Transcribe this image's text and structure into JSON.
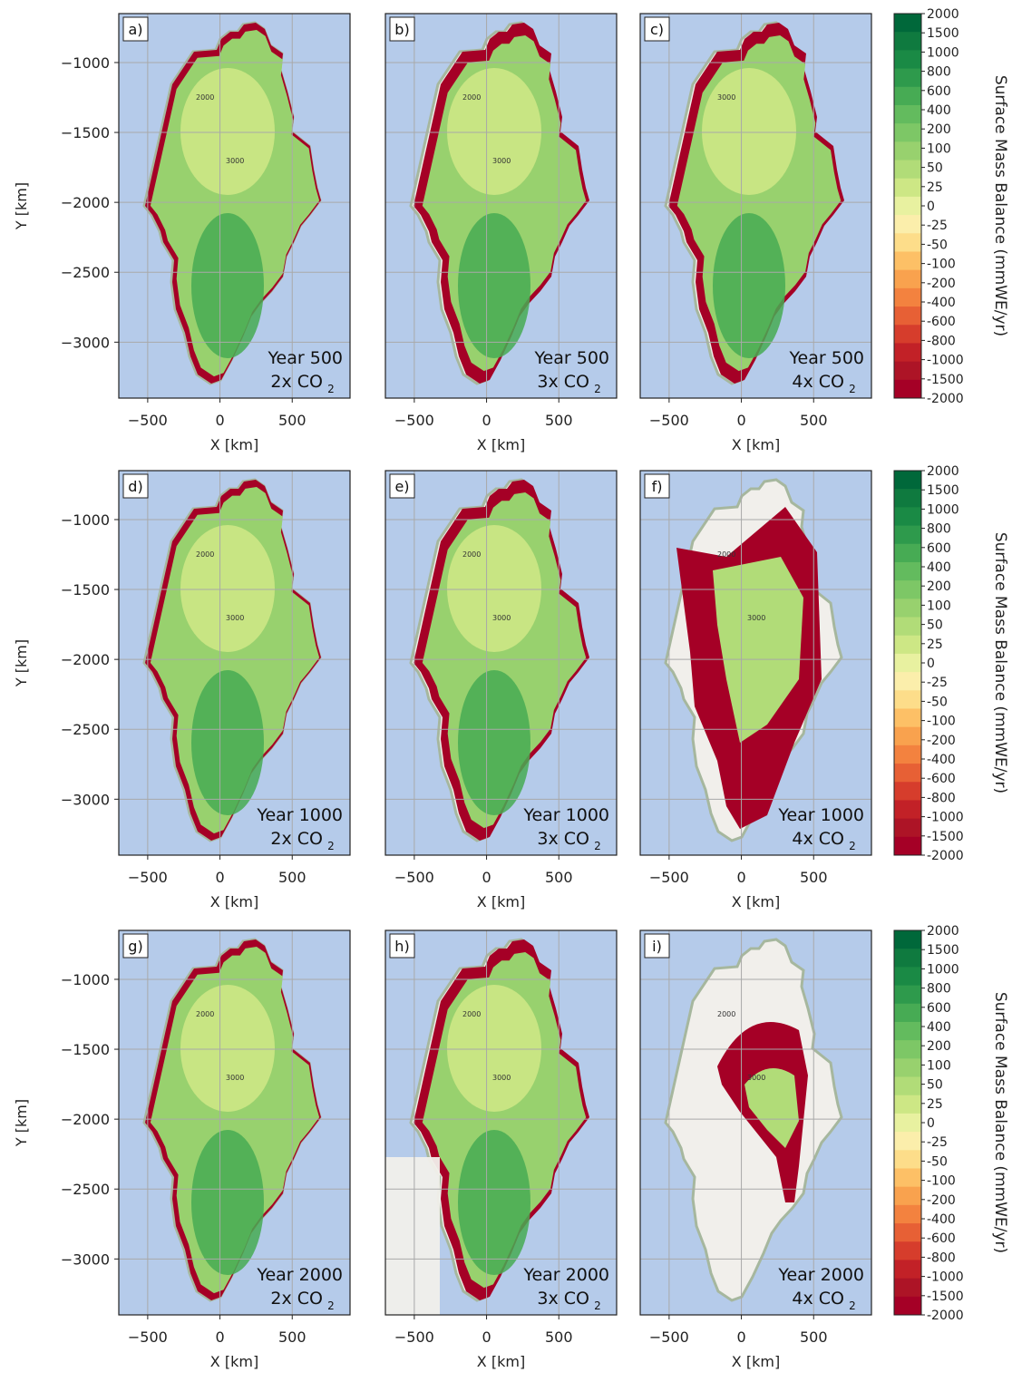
{
  "figure": {
    "x_label": "X [km]",
    "y_label": "Y [km]",
    "colorbar_label": "Surface Mass Balance (mmWE/yr)"
  },
  "chart_data": {
    "type": "heatmap",
    "x_ticks": [
      -500,
      0,
      500
    ],
    "y_ticks": [
      -1000,
      -1500,
      -2000,
      -2500,
      -3000
    ],
    "xlim": [
      -700,
      900
    ],
    "ylim": [
      -3400,
      -650
    ],
    "grid": true,
    "colorbar": {
      "levels": [
        "2000",
        "1500",
        "1000",
        "800",
        "600",
        "400",
        "200",
        "100",
        "50",
        "25",
        "0",
        "-25",
        "-50",
        "-100",
        "-200",
        "-400",
        "-600",
        "-800",
        "-1000",
        "-1500",
        "-2000"
      ],
      "colors": [
        "#00683a",
        "#0f7a3f",
        "#1a8a45",
        "#2e9a4c",
        "#47ab54",
        "#63bb5e",
        "#7dc766",
        "#98d16e",
        "#b1dc78",
        "#cde785",
        "#e8f1a0",
        "#fbeeab",
        "#fddd8a",
        "#fdc066",
        "#f9a24e",
        "#f3823f",
        "#e76035",
        "#d63d2c",
        "#c22127",
        "#ad1426",
        "#a50026"
      ]
    },
    "panels": [
      {
        "id": "a)",
        "year": "Year 500",
        "co2": "2x CO",
        "ice_extent": "full",
        "contours": [
          "2000",
          "3000"
        ]
      },
      {
        "id": "b)",
        "year": "Year 500",
        "co2": "3x CO",
        "ice_extent": "full",
        "contours": [
          "2000",
          "3000"
        ]
      },
      {
        "id": "c)",
        "year": "Year 500",
        "co2": "4x CO",
        "ice_extent": "reduced",
        "contours": [
          "3000"
        ]
      },
      {
        "id": "d)",
        "year": "Year 1000",
        "co2": "2x CO",
        "ice_extent": "full",
        "contours": [
          "2000",
          "3000"
        ]
      },
      {
        "id": "e)",
        "year": "Year 1000",
        "co2": "3x CO",
        "ice_extent": "full",
        "contours": [
          "2000",
          "3000"
        ]
      },
      {
        "id": "f)",
        "year": "Year 1000",
        "co2": "4x CO",
        "ice_extent": "strongly reduced",
        "contours": [
          "2000",
          "3000"
        ]
      },
      {
        "id": "g)",
        "year": "Year 2000",
        "co2": "2x CO",
        "ice_extent": "full",
        "contours": [
          "2000",
          "3000"
        ]
      },
      {
        "id": "h)",
        "year": "Year 2000",
        "co2": "3x CO",
        "ice_extent": "reduced",
        "contours": [
          "2000",
          "3000"
        ]
      },
      {
        "id": "i)",
        "year": "Year 2000",
        "co2": "4x CO",
        "ice_extent": "remnant",
        "contours": [
          "2000",
          "3000"
        ]
      }
    ],
    "co2_subscript": "2"
  },
  "colors": {
    "ocean": "#b5cbea",
    "land": "#f1efeb",
    "coast": "#a6b79e",
    "grid": "#a9a9a9"
  }
}
